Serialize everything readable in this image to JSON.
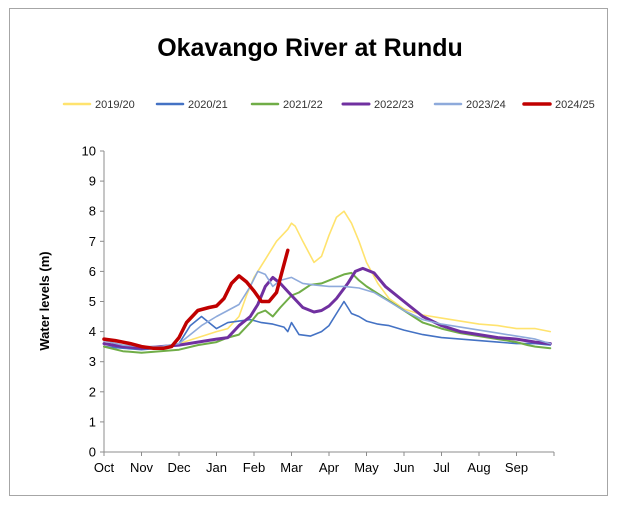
{
  "chart_data": {
    "type": "line",
    "title": "Okavango River at Rundu",
    "ylabel": "Water levels (m)",
    "xlabel": "",
    "ylim": [
      0,
      10
    ],
    "yticks": [
      0,
      1,
      2,
      3,
      4,
      5,
      6,
      7,
      8,
      9,
      10
    ],
    "categories": [
      "Oct",
      "Nov",
      "Dec",
      "Jan",
      "Feb",
      "Mar",
      "Apr",
      "May",
      "Jun",
      "Jul",
      "Aug",
      "Sep"
    ],
    "grid": false,
    "legend": "top",
    "series": [
      {
        "name": "2019/20",
        "color": "#ffe36e",
        "width": 1.6,
        "x": [
          0,
          0.5,
          1,
          1.3,
          1.6,
          2,
          2.5,
          3,
          3.3,
          3.6,
          3.8,
          4,
          4.3,
          4.6,
          4.9,
          5,
          5.1,
          5.3,
          5.6,
          5.8,
          6,
          6.2,
          6.4,
          6.6,
          6.8,
          7,
          7.3,
          7.6,
          8,
          8.5,
          9,
          9.5,
          10,
          10.5,
          11,
          11.5,
          11.9
        ],
        "y": [
          3.6,
          3.55,
          3.5,
          3.45,
          3.5,
          3.6,
          3.8,
          4.0,
          4.1,
          4.5,
          5.2,
          5.8,
          6.4,
          7.0,
          7.4,
          7.6,
          7.5,
          7.0,
          6.3,
          6.5,
          7.2,
          7.8,
          8.0,
          7.6,
          7.0,
          6.3,
          5.6,
          5.1,
          4.75,
          4.55,
          4.45,
          4.35,
          4.25,
          4.2,
          4.1,
          4.1,
          4.0
        ]
      },
      {
        "name": "2020/21",
        "color": "#4472c4",
        "width": 1.6,
        "x": [
          0,
          0.5,
          1,
          1.5,
          2,
          2.3,
          2.6,
          2.8,
          3,
          3.3,
          3.6,
          3.9,
          4.2,
          4.5,
          4.8,
          4.9,
          5,
          5.2,
          5.5,
          5.8,
          6,
          6.2,
          6.4,
          6.5,
          6.6,
          6.8,
          7,
          7.3,
          7.6,
          8,
          8.5,
          9,
          9.5,
          10,
          10.5,
          11,
          11.5,
          11.9
        ],
        "y": [
          3.5,
          3.45,
          3.4,
          3.45,
          3.6,
          4.2,
          4.5,
          4.3,
          4.1,
          4.3,
          4.35,
          4.4,
          4.3,
          4.25,
          4.15,
          4.0,
          4.3,
          3.9,
          3.85,
          4.0,
          4.2,
          4.6,
          5.0,
          4.8,
          4.6,
          4.5,
          4.35,
          4.25,
          4.2,
          4.05,
          3.9,
          3.8,
          3.75,
          3.7,
          3.65,
          3.6,
          3.6,
          3.55
        ]
      },
      {
        "name": "2021/22",
        "color": "#70ad47",
        "width": 2,
        "x": [
          0,
          0.5,
          1,
          1.5,
          2,
          2.5,
          3,
          3.3,
          3.6,
          3.9,
          4.1,
          4.3,
          4.5,
          4.7,
          5,
          5.2,
          5.5,
          5.8,
          6,
          6.2,
          6.4,
          6.6,
          6.8,
          7,
          7.5,
          8,
          8.5,
          9,
          9.5,
          10,
          10.5,
          11,
          11.3,
          11.5,
          11.9
        ],
        "y": [
          3.5,
          3.35,
          3.3,
          3.35,
          3.4,
          3.55,
          3.65,
          3.8,
          3.9,
          4.3,
          4.6,
          4.7,
          4.5,
          4.8,
          5.2,
          5.3,
          5.55,
          5.6,
          5.7,
          5.8,
          5.9,
          5.95,
          5.7,
          5.5,
          5.1,
          4.7,
          4.3,
          4.1,
          3.95,
          3.85,
          3.75,
          3.65,
          3.55,
          3.5,
          3.45
        ]
      },
      {
        "name": "2022/23",
        "color": "#7030a0",
        "width": 3,
        "x": [
          0,
          0.5,
          1,
          1.5,
          2,
          2.5,
          3,
          3.3,
          3.6,
          3.9,
          4.1,
          4.3,
          4.5,
          4.7,
          5,
          5.3,
          5.6,
          5.8,
          6,
          6.2,
          6.5,
          6.7,
          6.9,
          7.2,
          7.5,
          8,
          8.5,
          9,
          9.5,
          10,
          10.5,
          11,
          11.5,
          11.9
        ],
        "y": [
          3.6,
          3.5,
          3.45,
          3.5,
          3.55,
          3.65,
          3.75,
          3.8,
          4.2,
          4.5,
          4.9,
          5.5,
          5.8,
          5.6,
          5.2,
          4.8,
          4.65,
          4.7,
          4.85,
          5.1,
          5.6,
          6.0,
          6.1,
          5.95,
          5.5,
          5.0,
          4.5,
          4.2,
          4.0,
          3.9,
          3.8,
          3.75,
          3.65,
          3.6
        ]
      },
      {
        "name": "2023/24",
        "color": "#8eaadb",
        "width": 1.6,
        "x": [
          0,
          0.5,
          1,
          1.5,
          2,
          2.3,
          2.6,
          3,
          3.3,
          3.6,
          3.9,
          4.1,
          4.3,
          4.5,
          4.7,
          5,
          5.3,
          5.6,
          6,
          6.4,
          6.8,
          7.2,
          7.6,
          8,
          8.5,
          9,
          9.5,
          10,
          10.5,
          11,
          11.5,
          11.9
        ],
        "y": [
          3.7,
          3.55,
          3.5,
          3.5,
          3.6,
          3.9,
          4.2,
          4.5,
          4.7,
          4.9,
          5.5,
          6.0,
          5.9,
          5.5,
          5.7,
          5.8,
          5.6,
          5.55,
          5.5,
          5.5,
          5.45,
          5.3,
          5.0,
          4.7,
          4.4,
          4.25,
          4.15,
          4.05,
          3.95,
          3.85,
          3.75,
          3.6
        ]
      },
      {
        "name": "2024/25",
        "color": "#c00000",
        "width": 3.5,
        "x": [
          0,
          0.3,
          0.7,
          1,
          1.3,
          1.6,
          1.8,
          2,
          2.2,
          2.5,
          2.8,
          3,
          3.2,
          3.4,
          3.6,
          3.8,
          4,
          4.2,
          4.4,
          4.6,
          4.75,
          4.9
        ],
        "y": [
          3.75,
          3.7,
          3.6,
          3.5,
          3.45,
          3.45,
          3.5,
          3.8,
          4.3,
          4.7,
          4.8,
          4.85,
          5.1,
          5.6,
          5.85,
          5.65,
          5.35,
          5.0,
          5.0,
          5.3,
          6.0,
          6.7
        ]
      }
    ]
  }
}
